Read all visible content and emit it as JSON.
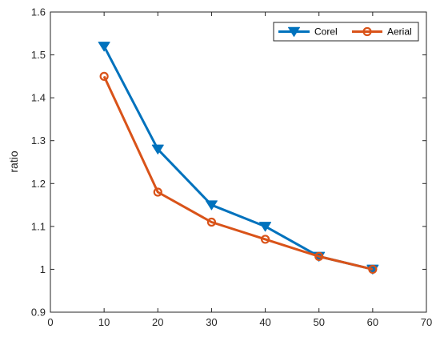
{
  "chart_data": {
    "type": "line",
    "title": "",
    "xlabel": "",
    "ylabel": "ratio",
    "xlim": [
      0,
      70
    ],
    "ylim": [
      0.9,
      1.6
    ],
    "xticks": [
      "0",
      "10",
      "20",
      "30",
      "40",
      "50",
      "60",
      "70"
    ],
    "yticks": [
      "0.9",
      "1",
      "1.1",
      "1.2",
      "1.3",
      "1.4",
      "1.5",
      "1.6"
    ],
    "grid": false,
    "legend_position": "top-right",
    "x": [
      10,
      20,
      30,
      40,
      50,
      60
    ],
    "series": [
      {
        "name": "Corel",
        "values": [
          1.52,
          1.28,
          1.15,
          1.1,
          1.03,
          1.0
        ],
        "color": "#0072BD",
        "marker": "triangle-down"
      },
      {
        "name": "Aerial",
        "values": [
          1.45,
          1.18,
          1.11,
          1.07,
          1.03,
          1.0
        ],
        "color": "#D95319",
        "marker": "circle"
      }
    ]
  }
}
